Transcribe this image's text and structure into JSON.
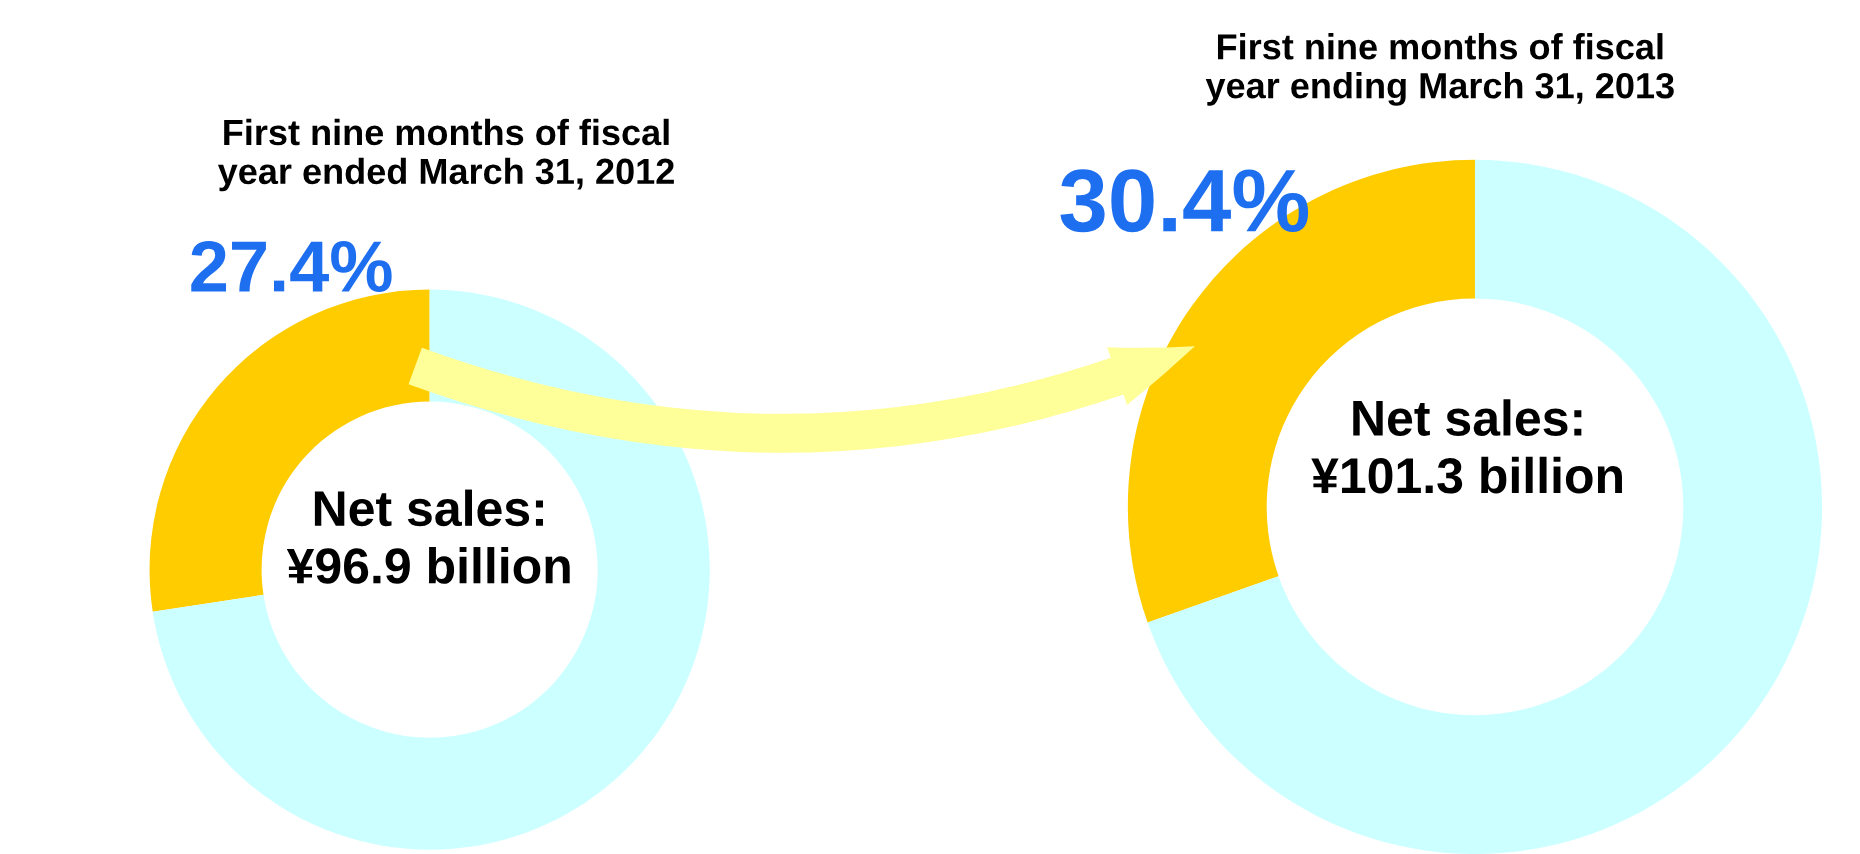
{
  "chart_data": [
    {
      "type": "donut",
      "title": "First nine months of fiscal\nyear ended March 31, 2012",
      "categories": [
        null,
        null
      ],
      "values": [
        27.4,
        72.6
      ],
      "colors": [
        "#ffcc00",
        "#ccffff"
      ],
      "value_labels": [
        "27.4%",
        null
      ],
      "annotations": [
        "Net sales:\n¥96.9 billion"
      ]
    },
    {
      "type": "donut",
      "title": "First nine months of fiscal\nyear ending March 31, 2013",
      "categories": [
        null,
        null
      ],
      "values": [
        30.4,
        69.6
      ],
      "colors": [
        "#ffcc00",
        "#ccffff"
      ],
      "value_labels": [
        "30.4%",
        null
      ],
      "annotations": [
        "Net sales:\n¥101.3 billion"
      ]
    }
  ]
}
